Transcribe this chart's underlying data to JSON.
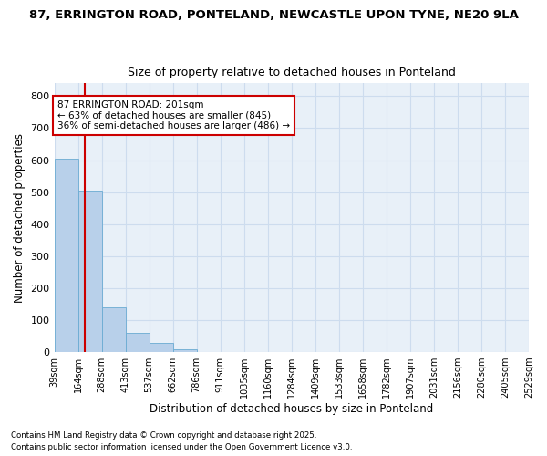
{
  "title_line1": "87, ERRINGTON ROAD, PONTELAND, NEWCASTLE UPON TYNE, NE20 9LA",
  "title_line2": "Size of property relative to detached houses in Ponteland",
  "xlabel": "Distribution of detached houses by size in Ponteland",
  "ylabel": "Number of detached properties",
  "bin_edges": [
    39,
    164,
    288,
    413,
    537,
    662,
    786,
    911,
    1035,
    1160,
    1284,
    1409,
    1533,
    1658,
    1782,
    1907,
    2031,
    2156,
    2280,
    2405,
    2529
  ],
  "bin_counts": [
    605,
    505,
    140,
    60,
    27,
    8,
    0,
    0,
    0,
    0,
    0,
    0,
    0,
    0,
    0,
    0,
    0,
    0,
    0,
    0
  ],
  "bar_color": "#b8d0ea",
  "bar_edge_color": "#6aabd2",
  "grid_color": "#cddcee",
  "background_color": "#e8f0f8",
  "vline_x": 201,
  "vline_color": "#cc0000",
  "annotation_text": "87 ERRINGTON ROAD: 201sqm\n← 63% of detached houses are smaller (845)\n36% of semi-detached houses are larger (486) →",
  "annotation_box_color": "white",
  "annotation_box_edge": "#cc0000",
  "ylim": [
    0,
    840
  ],
  "yticks": [
    0,
    100,
    200,
    300,
    400,
    500,
    600,
    700,
    800
  ],
  "footer_line1": "Contains HM Land Registry data © Crown copyright and database right 2025.",
  "footer_line2": "Contains public sector information licensed under the Open Government Licence v3.0.",
  "tick_label_fontsize": 7,
  "axis_label_fontsize": 8.5,
  "title_fontsize1": 9.5,
  "title_fontsize2": 9
}
